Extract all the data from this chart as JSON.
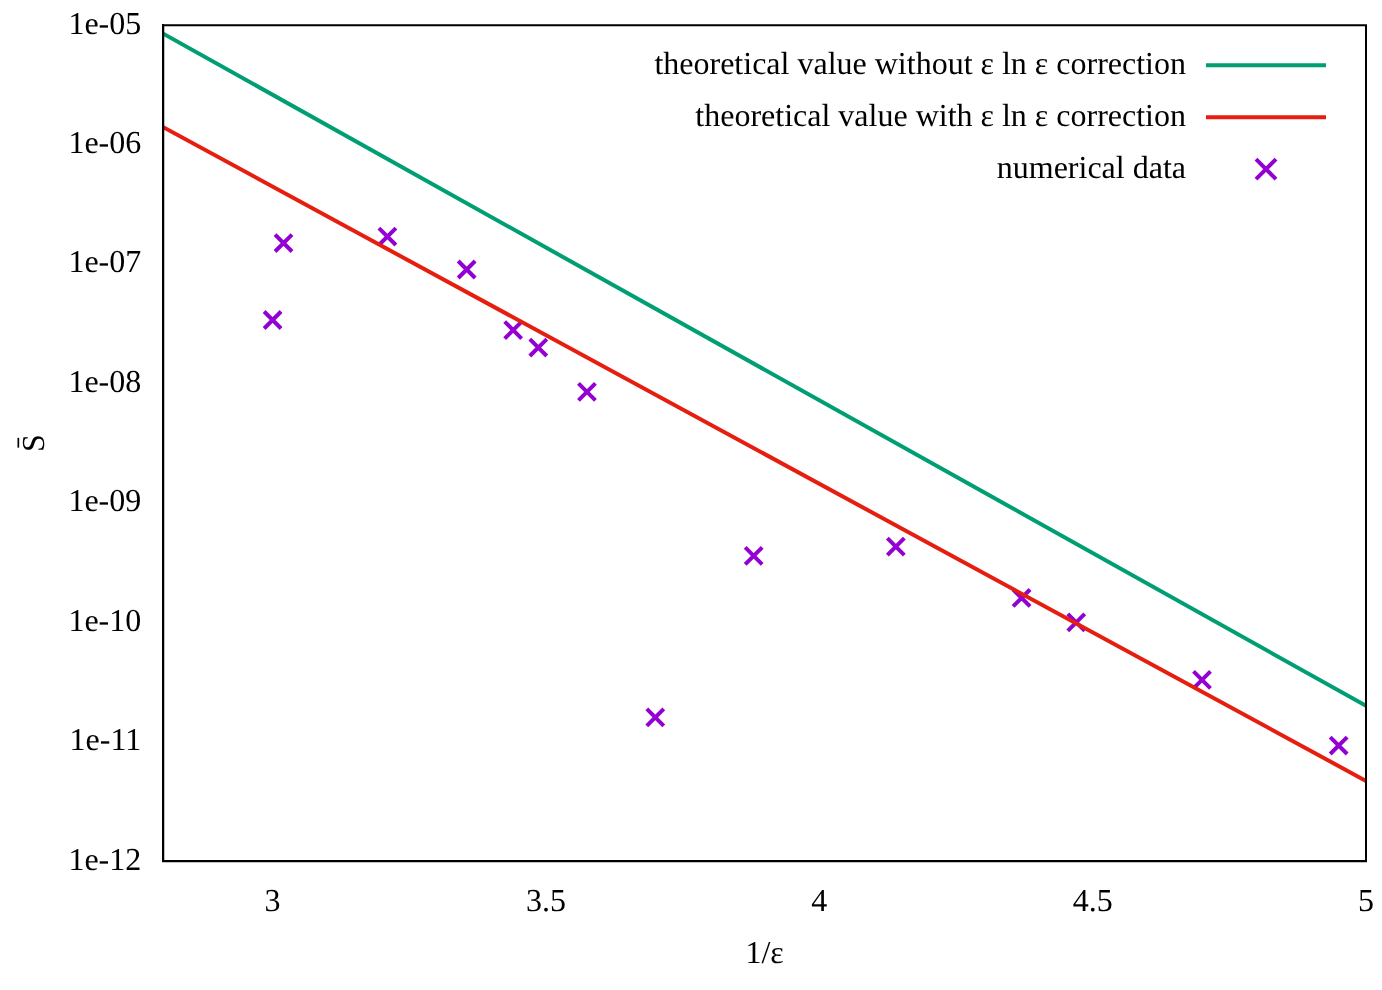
{
  "chart_data": {
    "type": "scatter",
    "xlabel": "1/ε",
    "ylabel": "S̄",
    "log": "y",
    "grid": false,
    "legend": "top right",
    "xlim": [
      2.8,
      5
    ],
    "xticks": [
      3,
      3.5,
      4,
      4.5,
      5
    ],
    "ylim": [
      1e-12,
      1e-05
    ],
    "yticks": [
      {
        "value": 1e-12,
        "label": "1e-12"
      },
      {
        "value": 1e-11,
        "label": "1e-11"
      },
      {
        "value": 1e-10,
        "label": "1e-10"
      },
      {
        "value": 1e-09,
        "label": "1e-09"
      },
      {
        "value": 1e-08,
        "label": "1e-08"
      },
      {
        "value": 1e-07,
        "label": "1e-07"
      },
      {
        "value": 1e-06,
        "label": "1e-06"
      },
      {
        "value": 1e-05,
        "label": "1e-05"
      }
    ],
    "series": [
      {
        "name": "theoretical value without ε ln ε correction",
        "type": "line",
        "marker": "none",
        "line_style": "solid",
        "color": "#009e73",
        "x": [
          2.8,
          5
        ],
        "values": [
          8.5e-06,
          2e-11
        ]
      },
      {
        "name": "theoretical value with ε ln ε correction",
        "type": "line",
        "marker": "none",
        "line_style": "solid",
        "color": "#e51e10",
        "x": [
          2.8,
          5
        ],
        "values": [
          1.4e-06,
          4.7e-12
        ]
      },
      {
        "name": "numerical data",
        "type": "scatter",
        "marker": "cross",
        "color": "#9400d3",
        "x": [
          3.0,
          3.02,
          3.21,
          3.355,
          3.44,
          3.486,
          3.575,
          3.7,
          3.88,
          4.14,
          4.37,
          4.47,
          4.7,
          4.95
        ],
        "values": [
          3.4e-08,
          1.5e-07,
          1.7e-07,
          9e-08,
          2.8e-08,
          2e-08,
          8.5e-09,
          1.6e-11,
          3.6e-10,
          4.3e-10,
          1.6e-10,
          1e-10,
          3.3e-11,
          9.3e-12
        ]
      }
    ]
  }
}
